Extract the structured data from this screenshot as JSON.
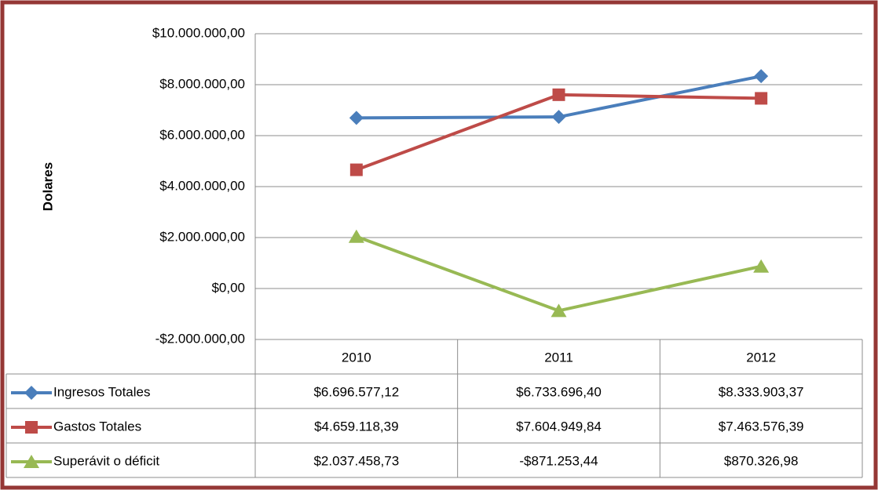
{
  "chart_data": {
    "type": "line",
    "y_label": "Dolares",
    "categories": [
      "2010",
      "2011",
      "2012"
    ],
    "series": [
      {
        "name": "Ingresos Totales",
        "color": "#4a7ebb",
        "marker": "diamond",
        "values": [
          6696577.12,
          6733696.4,
          8333903.37
        ],
        "value_labels": [
          "$6.696.577,12",
          "$6.733.696,40",
          "$8.333.903,37"
        ]
      },
      {
        "name": "Gastos Totales",
        "color": "#be4b48",
        "marker": "square",
        "values": [
          4659118.39,
          7604949.84,
          7463576.39
        ],
        "value_labels": [
          "$4.659.118,39",
          "$7.604.949,84",
          "$7.463.576,39"
        ]
      },
      {
        "name": "Superávit o déficit",
        "color": "#98b954",
        "marker": "triangle",
        "values": [
          2037458.73,
          -871253.44,
          870326.98
        ],
        "value_labels": [
          "$2.037.458,73",
          "-$871.253,44",
          "$870.326,98"
        ]
      }
    ],
    "ylim": [
      -2000000,
      10000000
    ],
    "yticks": [
      {
        "value": -2000000,
        "label": "-$2.000.000,00"
      },
      {
        "value": 0,
        "label": "$0,00"
      },
      {
        "value": 2000000,
        "label": "$2.000.000,00"
      },
      {
        "value": 4000000,
        "label": "$4.000.000,00"
      },
      {
        "value": 6000000,
        "label": "$6.000.000,00"
      },
      {
        "value": 8000000,
        "label": "$8.000.000,00"
      },
      {
        "value": 10000000,
        "label": "$10.000.000,00"
      }
    ],
    "grid": true
  }
}
